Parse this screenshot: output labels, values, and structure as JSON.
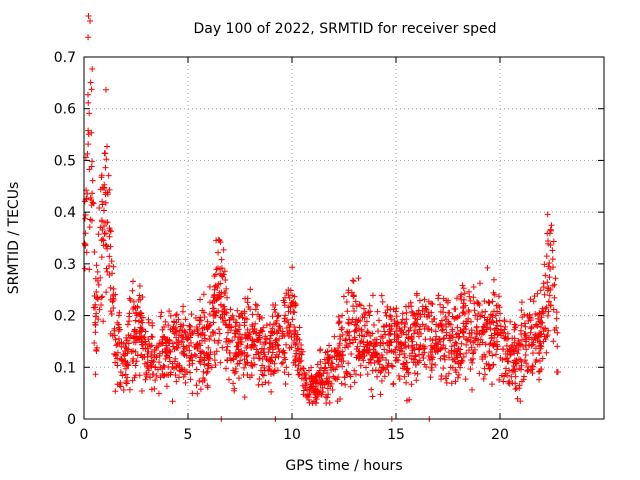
{
  "chart_data": {
    "type": "scatter",
    "title": "Day 100 of 2022, SRMTID for receiver sped",
    "xlabel": "GPS time / hours",
    "ylabel": "SRMTID / TECUs",
    "xlim": [
      0,
      25
    ],
    "ylim": [
      0,
      0.7
    ],
    "xticks": [
      0,
      5,
      10,
      15,
      20
    ],
    "xtick_labels": [
      "0",
      "5",
      "10",
      "15",
      "20"
    ],
    "yticks": [
      0,
      0.1,
      0.2,
      0.3,
      0.4,
      0.5,
      0.6,
      0.7
    ],
    "ytick_labels": [
      "0",
      "0.1",
      "0.2",
      "0.3",
      "0.4",
      "0.5",
      "0.6",
      "0.7"
    ],
    "grid": true,
    "marker": "+",
    "color": "#ff0000",
    "x_range_of_data": [
      0,
      22.8
    ],
    "trend": {
      "x": [
        0,
        0.1,
        0.25,
        0.4,
        0.55,
        0.8,
        1.0,
        1.2,
        1.5,
        2.0,
        2.5,
        3.0,
        4.0,
        5.0,
        6.0,
        6.5,
        7.0,
        8.0,
        9.0,
        9.6,
        10.0,
        10.5,
        11.0,
        11.5,
        12.0,
        12.5,
        13.0,
        14.0,
        15.0,
        16.0,
        17.0,
        18.0,
        19.0,
        20.0,
        20.8,
        21.5,
        22.0,
        22.4,
        22.8
      ],
      "y": [
        0.35,
        0.42,
        0.6,
        0.5,
        0.16,
        0.32,
        0.42,
        0.3,
        0.16,
        0.11,
        0.2,
        0.12,
        0.14,
        0.14,
        0.15,
        0.24,
        0.14,
        0.15,
        0.13,
        0.18,
        0.2,
        0.09,
        0.06,
        0.08,
        0.1,
        0.16,
        0.17,
        0.14,
        0.15,
        0.14,
        0.15,
        0.17,
        0.17,
        0.16,
        0.11,
        0.17,
        0.15,
        0.3,
        0.15
      ]
    },
    "zero_points_x": [
      6.6,
      9.2,
      14.8,
      16.6
    ]
  }
}
